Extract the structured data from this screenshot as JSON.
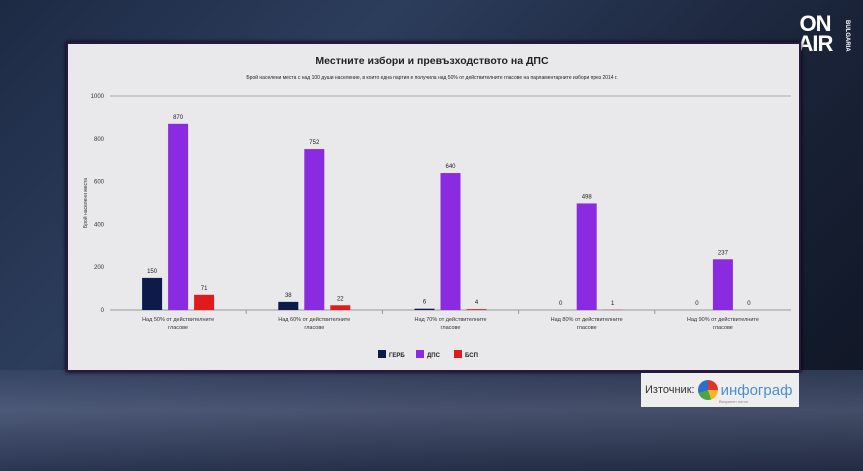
{
  "channel_logo": {
    "line1": "ON",
    "line2": "AIR",
    "sub": "BULGARIA"
  },
  "source": {
    "label": "Източник:",
    "brand": "инфограф",
    "tagline": "Визуален потоп"
  },
  "chart_data": {
    "type": "bar",
    "title": "Местните избори и превъзходството на ДПС",
    "subtitle": "Брой населени места с над 100 души население, в които една партия е получила над 50% от действителните гласове на парламентарните избори през 2014 г.",
    "ylabel": "Брой населени места",
    "xlabel": "",
    "ylim": [
      0,
      1000
    ],
    "yticks": [
      "0",
      "200",
      "400",
      "600",
      "800",
      "1000"
    ],
    "categories": [
      [
        "Над 50% от действителните",
        "гласове"
      ],
      [
        "Над 60% от действителните",
        "гласове"
      ],
      [
        "Над 70% от действителните",
        "гласове"
      ],
      [
        "Над 80% от действителните",
        "гласове"
      ],
      [
        "Над 90% от действителните",
        "гласове"
      ]
    ],
    "series": [
      {
        "name": "ГЕРБ",
        "color": "#0d1a4a",
        "values": [
          150,
          38,
          6,
          0,
          0
        ]
      },
      {
        "name": "ДПС",
        "color": "#8a2be2",
        "values": [
          870,
          752,
          640,
          498,
          237
        ]
      },
      {
        "name": "БСП",
        "color": "#e01b1b",
        "values": [
          71,
          22,
          4,
          1,
          0
        ]
      }
    ],
    "grid": false,
    "legend": "bottom"
  }
}
